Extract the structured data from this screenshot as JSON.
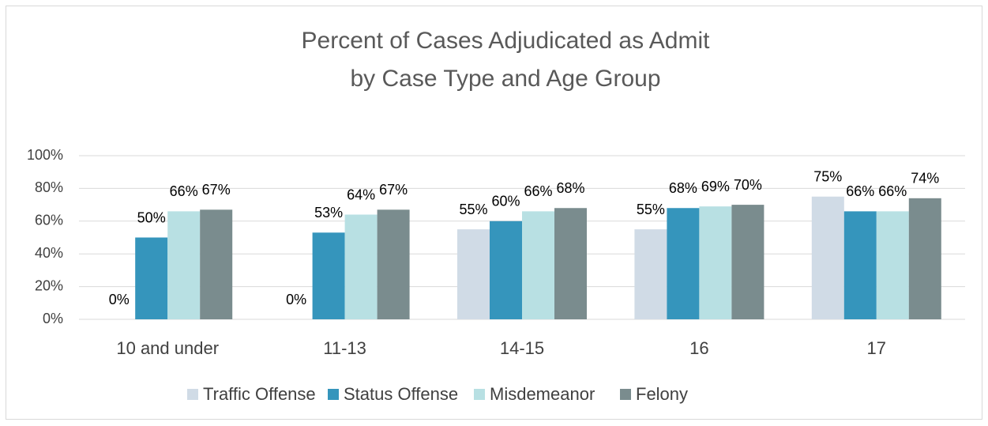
{
  "chart_data": {
    "type": "bar",
    "title": [
      "Percent of Cases Adjudicated as Admit",
      "by Case Type and Age Group"
    ],
    "categories": [
      "10 and under",
      "11-13",
      "14-15",
      "16",
      "17"
    ],
    "series": [
      {
        "name": "Traffic Offense",
        "color": "#d0dbe6",
        "values": [
          0,
          0,
          55,
          55,
          75
        ],
        "value_labels": [
          "0%",
          "0%",
          "55%",
          "55%",
          "75%"
        ]
      },
      {
        "name": "Status Offense",
        "color": "#3595bc",
        "values": [
          50,
          53,
          60,
          68,
          66
        ],
        "value_labels": [
          "50%",
          "53%",
          "60%",
          "68%",
          "66%"
        ]
      },
      {
        "name": "Misdemeanor",
        "color": "#b8e0e3",
        "values": [
          66,
          64,
          66,
          69,
          66
        ],
        "value_labels": [
          "66%",
          "64%",
          "66%",
          "69%",
          "66%"
        ]
      },
      {
        "name": "Felony",
        "color": "#7a8c8e",
        "values": [
          67,
          67,
          68,
          70,
          74
        ],
        "value_labels": [
          "67%",
          "67%",
          "68%",
          "70%",
          "74%"
        ]
      }
    ],
    "ylim": [
      0,
      100
    ],
    "yticks": [
      {
        "value": 0,
        "label": "0%"
      },
      {
        "value": 20,
        "label": "20%"
      },
      {
        "value": 40,
        "label": "40%"
      },
      {
        "value": 60,
        "label": "60%"
      },
      {
        "value": 80,
        "label": "80%"
      },
      {
        "value": 100,
        "label": "100%"
      }
    ],
    "grid": true,
    "legend": "bottom"
  }
}
